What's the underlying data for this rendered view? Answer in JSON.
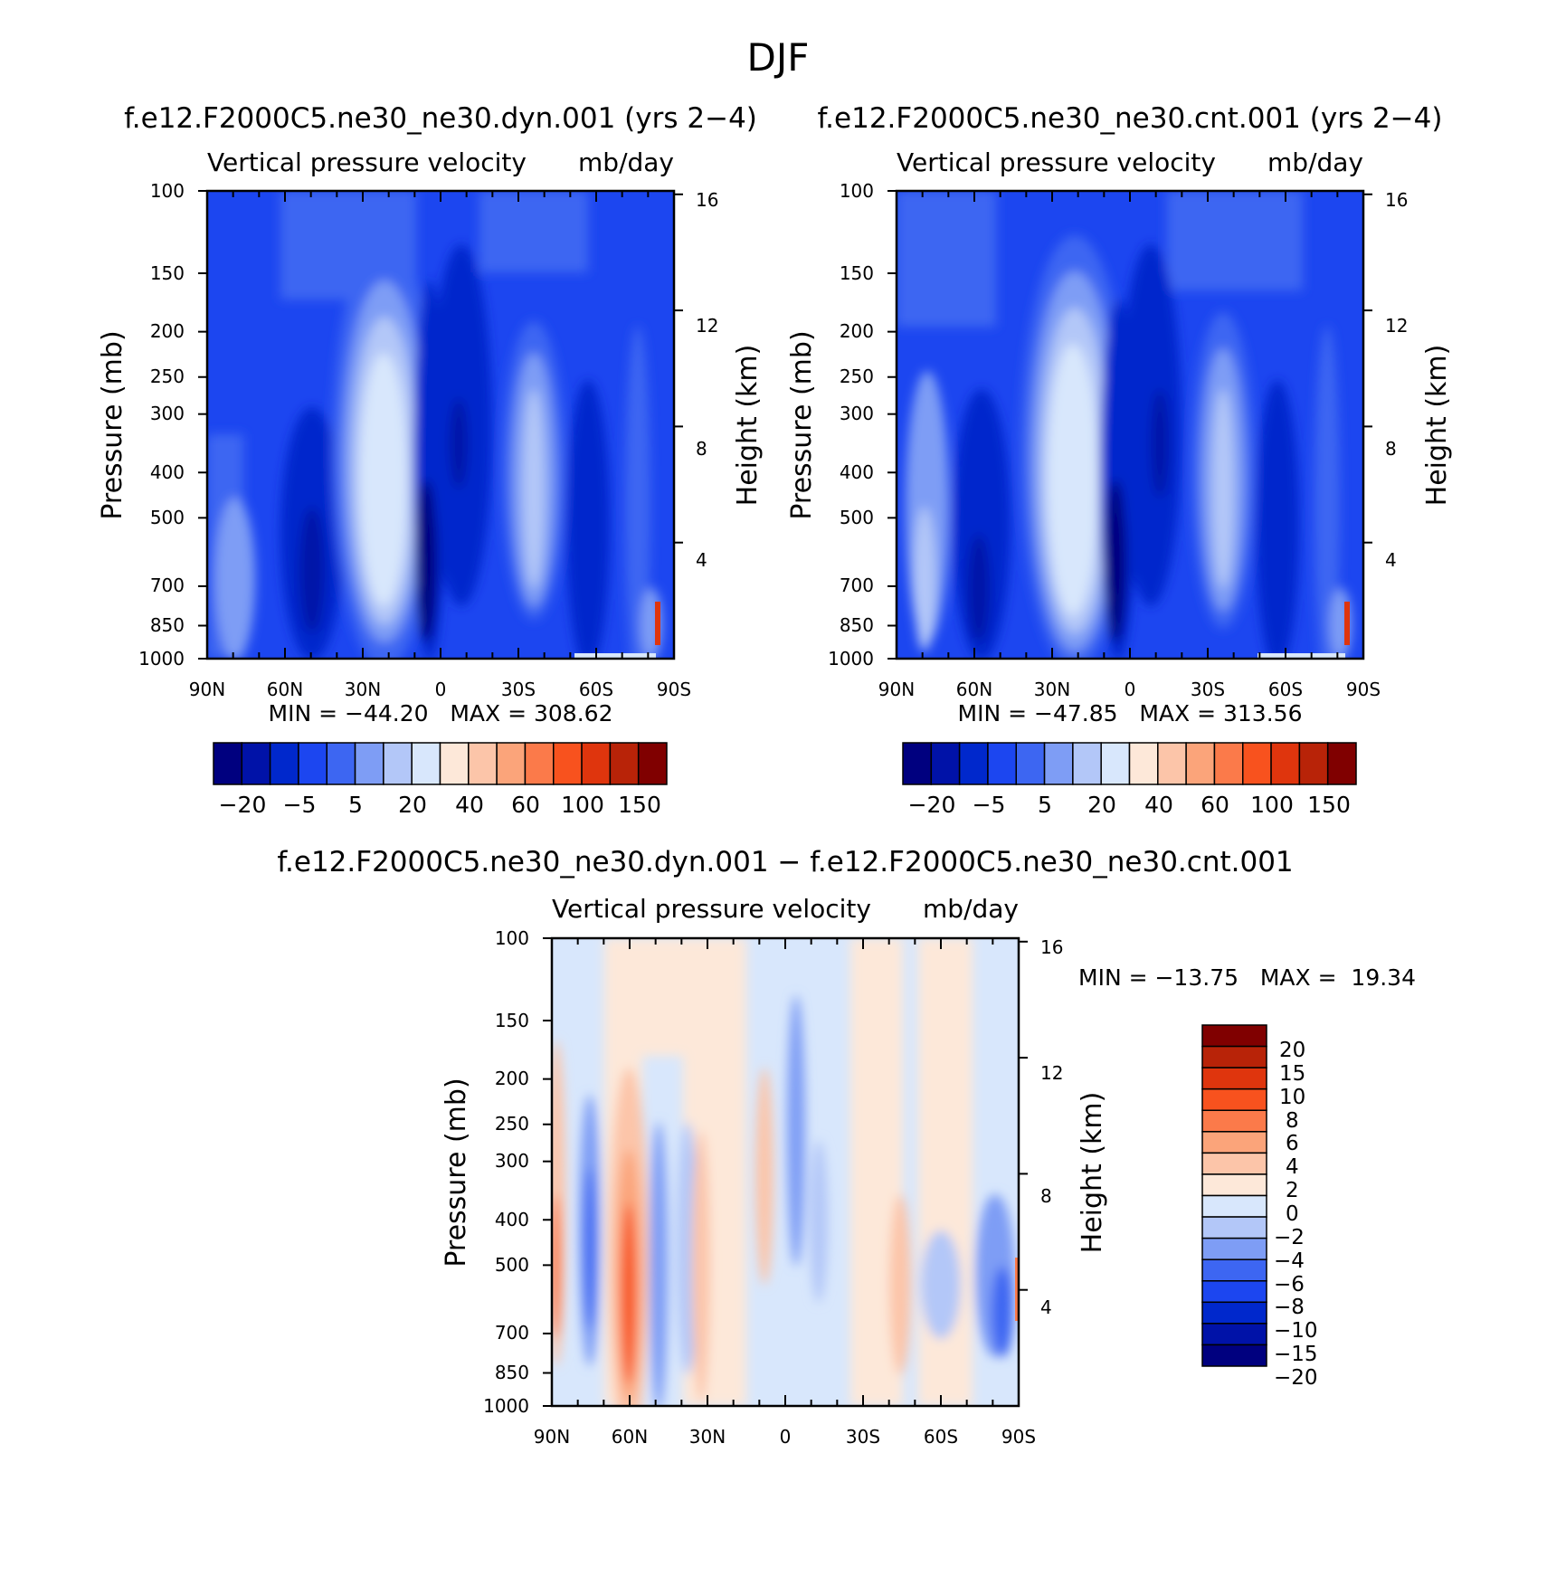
{
  "figure_title": "DJF",
  "colors": {
    "abs": [
      "#00007f",
      "#0012a8",
      "#0028cc",
      "#1c46f0",
      "#3d66f2",
      "#7e9df5",
      "#b3c7f8",
      "#d8e7fc",
      "#fde8d9",
      "#fcc5a9",
      "#fba47a",
      "#fb7a4a",
      "#f8521e",
      "#df350d",
      "#b82308",
      "#800000"
    ],
    "diff": [
      "#00007f",
      "#0012a8",
      "#0028cc",
      "#1c46f0",
      "#3d66f2",
      "#7e9df5",
      "#b3c7f8",
      "#d8e7fc",
      "#fde8d9",
      "#fcc5a9",
      "#fba47a",
      "#fb7a4a",
      "#f8521e",
      "#df350d",
      "#b82308",
      "#800000"
    ]
  },
  "chart_data": [
    {
      "type": "heatmap",
      "id": "dyn",
      "title": "f.e12.F2000C5.ne30_ne30.dyn.001 (yrs 2−4)",
      "subtitle_left": "Vertical pressure velocity",
      "subtitle_right": "mb/day",
      "ylabel": "Pressure (mb)",
      "ylabel_right": "Height (km)",
      "x_ticks": [
        "90N",
        "60N",
        "30N",
        "0",
        "30S",
        "60S",
        "90S"
      ],
      "y_ticks": [
        "100",
        "150",
        "200",
        "250",
        "300",
        "400",
        "500",
        "700",
        "850",
        "1000"
      ],
      "y_ticks_right": [
        "16",
        "12",
        "8",
        "4"
      ],
      "min_max": "MIN = −44.20   MAX = 308.62",
      "min": -44.2,
      "max": 308.62,
      "colorbar_labels": [
        "−20",
        "−5",
        "5",
        "20",
        "40",
        "60",
        "100",
        "150"
      ]
    },
    {
      "type": "heatmap",
      "id": "cnt",
      "title": "f.e12.F2000C5.ne30_ne30.cnt.001 (yrs 2−4)",
      "subtitle_left": "Vertical pressure velocity",
      "subtitle_right": "mb/day",
      "ylabel": "Pressure (mb)",
      "ylabel_right": "Height (km)",
      "x_ticks": [
        "90N",
        "60N",
        "30N",
        "0",
        "30S",
        "60S",
        "90S"
      ],
      "y_ticks": [
        "100",
        "150",
        "200",
        "250",
        "300",
        "400",
        "500",
        "700",
        "850",
        "1000"
      ],
      "y_ticks_right": [
        "16",
        "12",
        "8",
        "4"
      ],
      "min_max": "MIN = −47.85   MAX = 313.56",
      "min": -47.85,
      "max": 313.56,
      "colorbar_labels": [
        "−20",
        "−5",
        "5",
        "20",
        "40",
        "60",
        "100",
        "150"
      ]
    },
    {
      "type": "heatmap",
      "id": "diff",
      "title": "f.e12.F2000C5.ne30_ne30.dyn.001 − f.e12.F2000C5.ne30_ne30.cnt.001",
      "subtitle_left": "Vertical pressure velocity",
      "subtitle_right": "mb/day",
      "ylabel": "Pressure (mb)",
      "ylabel_right": "Height (km)",
      "x_ticks": [
        "90N",
        "60N",
        "30N",
        "0",
        "30S",
        "60S",
        "90S"
      ],
      "y_ticks": [
        "100",
        "150",
        "200",
        "250",
        "300",
        "400",
        "500",
        "700",
        "850",
        "1000"
      ],
      "y_ticks_right": [
        "16",
        "12",
        "8",
        "4"
      ],
      "min_max": "MIN = −13.75   MAX =  19.34",
      "min": -13.75,
      "max": 19.34,
      "colorbar_labels": [
        "20",
        "15",
        "10",
        "8",
        "6",
        "4",
        "2",
        "0",
        "−2",
        "−4",
        "−6",
        "−8",
        "−10",
        "−15",
        "−20"
      ]
    }
  ]
}
